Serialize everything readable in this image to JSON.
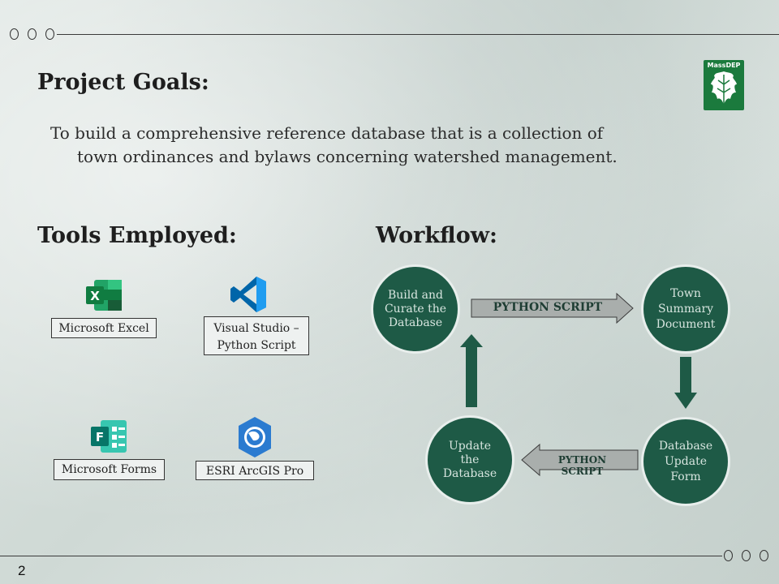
{
  "slide": {
    "page_number": "2",
    "logo_text": "MassDEP",
    "goals_heading": "Project Goals:",
    "goals_line1": "To build a comprehensive reference database that is a collection of",
    "goals_line2": "town ordinances and bylaws concerning watershed management.",
    "tools_heading": "Tools Employed:",
    "workflow_heading": "Workflow:"
  },
  "tools": {
    "excel": {
      "label": "Microsoft Excel",
      "icon": "excel-icon",
      "color": "#1d7044"
    },
    "vscode": {
      "label_line1": "Visual Studio –",
      "label_line2": "Python Script",
      "icon": "vscode-icon",
      "color": "#2a7fc9"
    },
    "forms": {
      "label": "Microsoft Forms",
      "icon": "forms-icon",
      "color": "#0b7a6b"
    },
    "arcgis": {
      "label": "ESRI ArcGIS Pro",
      "icon": "arcgis-icon",
      "color": "#2f7fcf"
    }
  },
  "workflow": {
    "node_build": [
      "Build and",
      "Curate the",
      "Database"
    ],
    "node_town": [
      "Town",
      "Summary",
      "Document"
    ],
    "node_form": [
      "Database",
      "Update",
      "Form"
    ],
    "node_update": [
      "Update",
      "the",
      "Database"
    ],
    "arrow_top_label": "PYTHON SCRIPT",
    "arrow_bottom_label": "PYTHON SCRIPT",
    "node_color": "#1e5a46"
  }
}
